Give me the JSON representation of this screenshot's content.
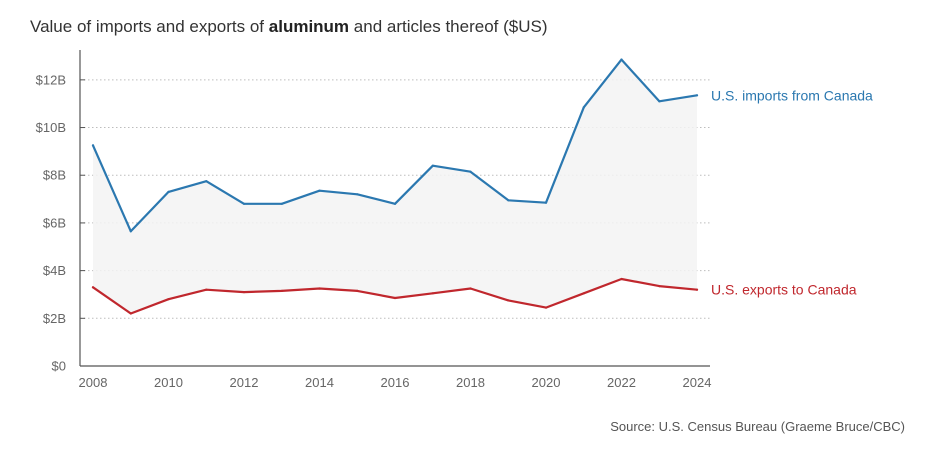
{
  "title": {
    "prefix": "Value of imports and exports of ",
    "bold": "aluminum",
    "suffix": " and articles thereof ($US)"
  },
  "source": "Source: U.S. Census Bureau (Graeme Bruce/CBC)",
  "chart_data": {
    "type": "line",
    "title": "Value of imports and exports of aluminum and articles thereof ($US)",
    "x": [
      2008,
      2009,
      2010,
      2011,
      2012,
      2013,
      2014,
      2015,
      2016,
      2017,
      2018,
      2019,
      2020,
      2021,
      2022,
      2023,
      2024
    ],
    "xlim": [
      2008,
      2024
    ],
    "x_tick_values": [
      2008,
      2010,
      2012,
      2014,
      2016,
      2018,
      2020,
      2022,
      2024
    ],
    "x_tick_labels": [
      "2008",
      "2010",
      "2012",
      "2014",
      "2016",
      "2018",
      "2020",
      "2022",
      "2024"
    ],
    "ylim": [
      0,
      13
    ],
    "y_tick_values": [
      0,
      2,
      4,
      6,
      8,
      10,
      12
    ],
    "y_tick_labels": [
      "$0",
      "$2B",
      "$4B",
      "$6B",
      "$8B",
      "$10B",
      "$12B"
    ],
    "grid": "horizontal-dotted",
    "fill_between": true,
    "series": [
      {
        "name": "U.S. imports from Canada",
        "color": "#2b78b0",
        "values": [
          9.25,
          5.65,
          7.3,
          7.75,
          6.8,
          6.8,
          7.35,
          7.2,
          6.8,
          8.4,
          8.15,
          6.95,
          6.85,
          10.85,
          12.85,
          11.1,
          11.35
        ]
      },
      {
        "name": "U.S. exports to Canada",
        "color": "#c0272d",
        "values": [
          3.3,
          2.2,
          2.8,
          3.2,
          3.1,
          3.15,
          3.25,
          3.15,
          2.85,
          3.05,
          3.25,
          2.75,
          2.45,
          3.05,
          3.65,
          3.35,
          3.2
        ]
      }
    ]
  }
}
